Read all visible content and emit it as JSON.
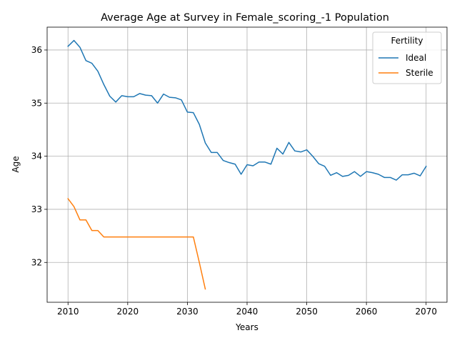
{
  "chart_data": {
    "type": "line",
    "title": "Average Age at Survey in Female_scoring_-1 Population",
    "xlabel": "Years",
    "ylabel": "Age",
    "xlim": [
      2006.5,
      2073.5
    ],
    "ylim": [
      31.25,
      36.43
    ],
    "xticks": [
      2010,
      2020,
      2030,
      2040,
      2050,
      2060,
      2070
    ],
    "yticks": [
      32,
      33,
      34,
      35,
      36
    ],
    "grid": true,
    "legend": {
      "title": "Fertility",
      "position": "top-right"
    },
    "series": [
      {
        "name": "Ideal",
        "color": "#1f77b4",
        "x": [
          2010,
          2011,
          2012,
          2013,
          2014,
          2015,
          2016,
          2017,
          2018,
          2019,
          2020,
          2021,
          2022,
          2023,
          2024,
          2025,
          2026,
          2027,
          2028,
          2029,
          2030,
          2031,
          2032,
          2033,
          2034,
          2035,
          2036,
          2037,
          2038,
          2039,
          2040,
          2041,
          2042,
          2043,
          2044,
          2045,
          2046,
          2047,
          2048,
          2049,
          2050,
          2051,
          2052,
          2053,
          2054,
          2055,
          2056,
          2057,
          2058,
          2059,
          2060,
          2061,
          2062,
          2063,
          2064,
          2065,
          2066,
          2067,
          2068,
          2069,
          2070
        ],
        "values": [
          36.07,
          36.18,
          36.05,
          35.8,
          35.75,
          35.6,
          35.35,
          35.13,
          35.02,
          35.14,
          35.12,
          35.12,
          35.18,
          35.15,
          35.14,
          35.0,
          35.17,
          35.11,
          35.1,
          35.06,
          34.83,
          34.82,
          34.6,
          34.25,
          34.07,
          34.07,
          33.92,
          33.88,
          33.85,
          33.66,
          33.84,
          33.82,
          33.89,
          33.89,
          33.85,
          34.15,
          34.04,
          34.26,
          34.1,
          34.08,
          34.12,
          34.0,
          33.86,
          33.81,
          33.64,
          33.69,
          33.62,
          33.64,
          33.71,
          33.62,
          33.71,
          33.69,
          33.66,
          33.6,
          33.6,
          33.55,
          33.65,
          33.65,
          33.68,
          33.63,
          33.81
        ]
      },
      {
        "name": "Sterile",
        "color": "#ff7f0e",
        "x": [
          2010,
          2011,
          2012,
          2013,
          2014,
          2015,
          2016,
          2017,
          2018,
          2019,
          2020,
          2021,
          2022,
          2023,
          2024,
          2025,
          2026,
          2027,
          2028,
          2029,
          2030,
          2031,
          2032,
          2033
        ],
        "values": [
          33.2,
          33.05,
          32.8,
          32.8,
          32.6,
          32.6,
          32.48,
          32.48,
          32.48,
          32.48,
          32.48,
          32.48,
          32.48,
          32.48,
          32.48,
          32.48,
          32.48,
          32.48,
          32.48,
          32.48,
          32.48,
          32.48,
          32.0,
          31.5
        ]
      }
    ]
  }
}
